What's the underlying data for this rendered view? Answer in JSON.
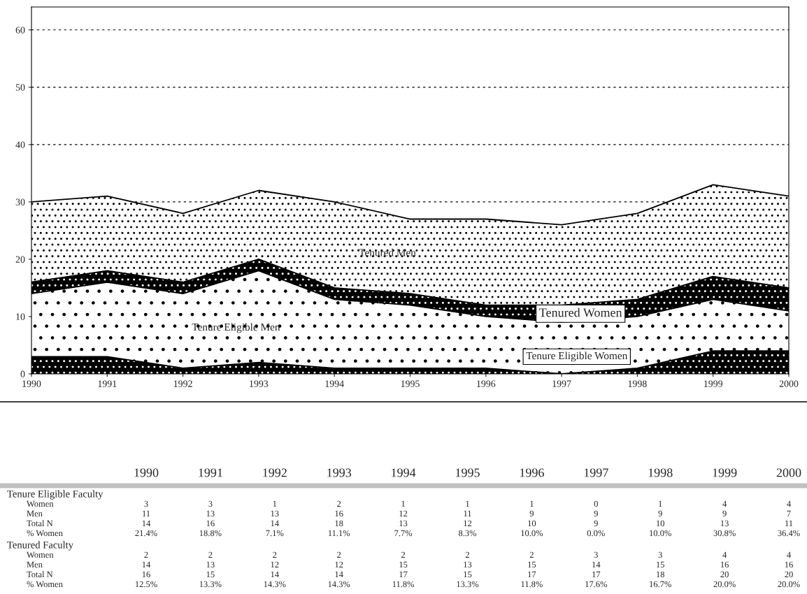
{
  "chart_data": {
    "type": "area",
    "stacked": true,
    "categories": [
      "1990",
      "1991",
      "1992",
      "1993",
      "1994",
      "1995",
      "1996",
      "1997",
      "1998",
      "1999",
      "2000"
    ],
    "series": [
      {
        "name": "Tenure Eligible Women",
        "color": "#000000",
        "values": [
          3,
          3,
          1,
          2,
          1,
          1,
          1,
          0,
          1,
          4,
          4
        ]
      },
      {
        "name": "Tenure Eligible Men",
        "color": "#ffffff",
        "values": [
          11,
          13,
          13,
          16,
          12,
          11,
          9,
          9,
          9,
          9,
          7
        ]
      },
      {
        "name": "Tenured Women",
        "color": "#000000",
        "values": [
          2,
          2,
          2,
          2,
          2,
          2,
          2,
          3,
          3,
          4,
          4
        ]
      },
      {
        "name": "Tenured Men",
        "color": "#ffffff",
        "values": [
          14,
          13,
          12,
          12,
          15,
          13,
          15,
          14,
          15,
          16,
          16
        ]
      }
    ],
    "ylim": [
      0,
      64
    ],
    "yticks": [
      0,
      10,
      20,
      30,
      40,
      50,
      60
    ],
    "grid": "y",
    "legend": false,
    "annotations": [
      "Tenure Eligible Faculty",
      "Women",
      "Men",
      "Total N",
      "% Women",
      "Tenured Faculty",
      "Women",
      "Men",
      "Total N",
      "% Women",
      "3",
      "3",
      "1",
      "2",
      "1",
      "1",
      "1",
      "0",
      "1",
      "4",
      "4",
      "11",
      "13",
      "13",
      "16",
      "12",
      "11",
      "9",
      "9",
      "9",
      "9",
      "7",
      "14",
      "16",
      "14",
      "18",
      "13",
      "12",
      "10",
      "9",
      "10",
      "13",
      "11",
      "21.4%",
      "18.8%",
      "7.1%",
      "11.1%",
      "7.7%",
      "8.3%",
      "10.0%",
      "0.0%",
      "10.0%",
      "30.8%",
      "36.4%",
      "2",
      "2",
      "2",
      "2",
      "2",
      "2",
      "2",
      "3",
      "3",
      "4",
      "4",
      "14",
      "13",
      "12",
      "12",
      "15",
      "13",
      "15",
      "14",
      "15",
      "16",
      "16",
      "16",
      "15",
      "14",
      "14",
      "17",
      "15",
      "17",
      "17",
      "18",
      "20",
      "20",
      "12.5%",
      "13.3%",
      "14.3%",
      "14.3%",
      "11.8%",
      "13.3%",
      "11.8%",
      "17.6%",
      "16.7%",
      "20.0%",
      "20.0%"
    ]
  }
}
